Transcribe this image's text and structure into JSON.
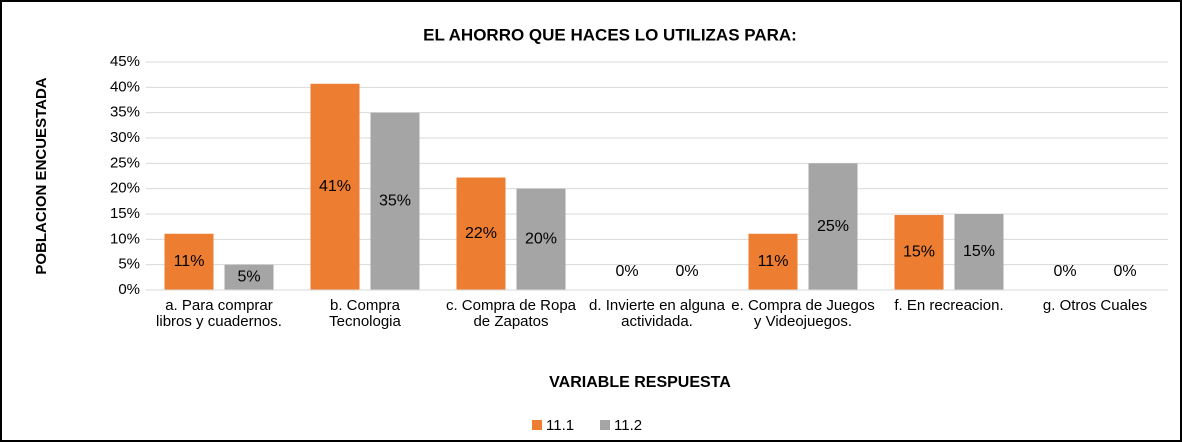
{
  "chart_data": {
    "type": "bar",
    "title": "EL AHORRO QUE HACES LO UTILIZAS PARA:",
    "x_label": "VARIABLE RESPUESTA",
    "y_label": "POBLACION ENCUESTADA",
    "categories": [
      "a. Para comprar libros y cuadernos.",
      "b. Compra Tecnologia",
      "c. Compra de Ropa de Zapatos",
      "d. Invierte en alguna actividada.",
      "e. Compra de Juegos y Videojuegos.",
      "f. En recreacion.",
      "g. Otros Cuales"
    ],
    "series": [
      {
        "name": "11.1",
        "color": "#ed7d31",
        "values": [
          11.1,
          40.7,
          22.2,
          0,
          11.1,
          14.8,
          0
        ],
        "value_labels": [
          "11%",
          "41%",
          "22%",
          "0%",
          "11%",
          "15%",
          "0%"
        ]
      },
      {
        "name": "11.2",
        "color": "#a5a5a5",
        "values": [
          5,
          35,
          20,
          0,
          25,
          15,
          0
        ],
        "value_labels": [
          "5%",
          "35%",
          "20%",
          "0%",
          "25%",
          "15%",
          "0%"
        ]
      }
    ],
    "ylim": [
      0,
      45
    ],
    "yticks": [
      {
        "value": 0,
        "label": "0%"
      },
      {
        "value": 5,
        "label": "5%"
      },
      {
        "value": 10,
        "label": "10%"
      },
      {
        "value": 15,
        "label": "15%"
      },
      {
        "value": 20,
        "label": "20%"
      },
      {
        "value": 25,
        "label": "25%"
      },
      {
        "value": 30,
        "label": "30%"
      },
      {
        "value": 35,
        "label": "35%"
      },
      {
        "value": 40,
        "label": "40%"
      },
      {
        "value": 45,
        "label": "45%"
      }
    ],
    "grid": true,
    "legend": "bottom"
  }
}
